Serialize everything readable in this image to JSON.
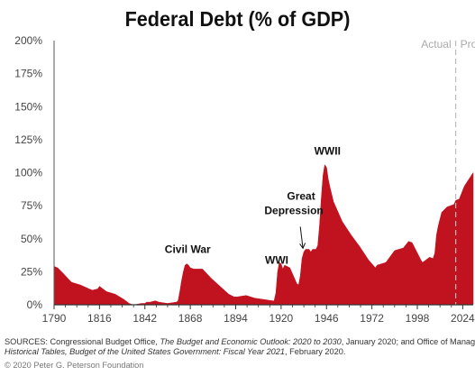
{
  "chart_data": {
    "type": "area",
    "title": "Federal Debt (% of GDP)",
    "xlabel": "",
    "ylabel": "",
    "xlim": [
      1790,
      2030
    ],
    "ylim": [
      0,
      200
    ],
    "x_ticks": [
      1790,
      1816,
      1842,
      1868,
      1894,
      1920,
      1946,
      1972,
      1998,
      2024
    ],
    "y_ticks": [
      {
        "value": 0,
        "label": "0%"
      },
      {
        "value": 25,
        "label": "25%"
      },
      {
        "value": 50,
        "label": "50%"
      },
      {
        "value": 75,
        "label": "75%"
      },
      {
        "value": 100,
        "label": "100%"
      },
      {
        "value": 125,
        "label": "125%"
      },
      {
        "value": 150,
        "label": "150%"
      },
      {
        "value": 175,
        "label": "175%"
      },
      {
        "value": 200,
        "label": "200%"
      }
    ],
    "grid": false,
    "color": "#c1121f",
    "divider_year": 2020,
    "region_labels": {
      "actual": "Actual",
      "projected": "Pro"
    },
    "annotations": [
      {
        "text": "Civil War",
        "year": 1866
      },
      {
        "text": "WWI",
        "year": 1918
      },
      {
        "text": "Great",
        "year": 1933
      },
      {
        "text": "Depression",
        "year": 1933
      },
      {
        "text": "WWII",
        "year": 1946
      }
    ],
    "series": [
      {
        "x": [
          1790,
          1792,
          1795,
          1800,
          1805,
          1810,
          1812,
          1815,
          1816,
          1820,
          1825,
          1830,
          1833,
          1835,
          1836,
          1840,
          1842,
          1843,
          1845,
          1848,
          1850,
          1855,
          1860,
          1861,
          1862,
          1863,
          1864,
          1865,
          1866,
          1867,
          1868,
          1870,
          1875,
          1880,
          1885,
          1890,
          1893,
          1895,
          1900,
          1905,
          1910,
          1915,
          1916,
          1917,
          1918,
          1919,
          1920,
          1921,
          1922,
          1925,
          1929,
          1930,
          1931,
          1932,
          1933,
          1934,
          1935,
          1936,
          1937,
          1938,
          1939,
          1940,
          1941,
          1942,
          1943,
          1944,
          1945,
          1946,
          1947,
          1948,
          1950,
          1955,
          1960,
          1965,
          1970,
          1974,
          1975,
          1980,
          1985,
          1990,
          1993,
          1995,
          2000,
          2001,
          2005,
          2007,
          2008,
          2009,
          2010,
          2012,
          2015,
          2019,
          2020,
          2022,
          2025,
          2030
        ],
        "values": [
          29,
          28,
          24,
          17,
          15,
          12,
          11,
          12,
          14,
          10,
          8,
          4,
          1,
          0,
          0,
          1,
          1,
          2,
          2,
          3,
          2,
          1,
          2,
          3,
          10,
          18,
          25,
          30,
          31,
          30,
          28,
          27,
          27,
          20,
          14,
          8,
          6,
          6,
          7,
          5,
          4,
          3,
          3,
          9,
          25,
          32,
          31,
          27,
          30,
          28,
          16,
          15,
          22,
          35,
          40,
          42,
          42,
          42,
          40,
          42,
          42,
          42,
          45,
          60,
          80,
          98,
          106,
          104,
          95,
          89,
          78,
          63,
          53,
          44,
          34,
          28,
          30,
          32,
          41,
          43,
          48,
          47,
          34,
          32,
          36,
          35,
          39,
          53,
          60,
          70,
          74,
          76,
          79,
          80,
          90,
          100
        ]
      }
    ]
  },
  "sources": {
    "prefix": "SOURCES: Congressional Budget Office, ",
    "italic1": "The Budget and Economic Outlook: 2020 to 2030",
    "middle": ", January 2020; and Office of Manag",
    "italic2": "Historical Tables, Budget of the United States Government: Fiscal Year 2021",
    "suffix": ", February 2020."
  },
  "copyright": "© 2020 Peter G. Peterson Foundation"
}
